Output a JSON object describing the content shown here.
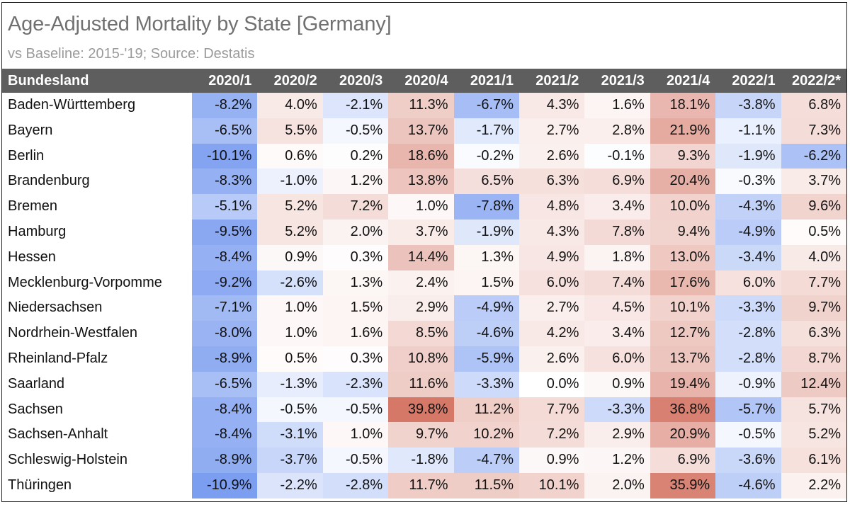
{
  "chart_data": {
    "type": "table",
    "title": "Age-Adjusted Mortality by State [Germany]",
    "subtitle": "vs Baseline: 2015-'19; Source: Destatis",
    "row_header": "Bundesland",
    "columns": [
      "2020/1",
      "2020/2",
      "2020/3",
      "2020/4",
      "2021/1",
      "2021/2",
      "2021/3",
      "2021/4",
      "2022/1",
      "2022/2*"
    ],
    "rows": [
      {
        "state": "Baden-Württemberg",
        "values": [
          -8.2,
          4.0,
          -2.1,
          11.3,
          -6.7,
          4.3,
          1.6,
          18.1,
          -3.8,
          6.8
        ]
      },
      {
        "state": "Bayern",
        "values": [
          -6.5,
          5.5,
          -0.5,
          13.7,
          -1.7,
          2.7,
          2.8,
          21.9,
          -1.1,
          7.3
        ]
      },
      {
        "state": "Berlin",
        "values": [
          -10.1,
          0.6,
          0.2,
          18.6,
          -0.2,
          2.6,
          -0.1,
          9.3,
          -1.9,
          -6.2
        ]
      },
      {
        "state": "Brandenburg",
        "values": [
          -8.3,
          -1.0,
          1.2,
          13.8,
          6.5,
          6.3,
          6.9,
          20.4,
          -0.3,
          3.7
        ]
      },
      {
        "state": "Bremen",
        "values": [
          -5.1,
          5.2,
          7.2,
          1.0,
          -7.8,
          4.8,
          3.4,
          10.0,
          -4.3,
          9.6
        ]
      },
      {
        "state": "Hamburg",
        "values": [
          -9.5,
          5.2,
          2.0,
          3.7,
          -1.9,
          4.3,
          7.8,
          9.4,
          -4.9,
          0.5
        ]
      },
      {
        "state": "Hessen",
        "values": [
          -8.4,
          0.9,
          0.3,
          14.4,
          1.3,
          4.9,
          1.8,
          13.0,
          -3.4,
          4.0
        ]
      },
      {
        "state": "Mecklenburg-Vorpomme",
        "values": [
          -9.2,
          -2.6,
          1.3,
          2.4,
          1.5,
          6.0,
          7.4,
          17.6,
          6.0,
          7.7
        ]
      },
      {
        "state": "Niedersachsen",
        "values": [
          -7.1,
          1.0,
          1.5,
          2.9,
          -4.9,
          2.7,
          4.5,
          10.1,
          -3.3,
          9.7
        ]
      },
      {
        "state": "Nordrhein-Westfalen",
        "values": [
          -8.0,
          1.0,
          1.6,
          8.5,
          -4.6,
          4.2,
          3.4,
          12.7,
          -2.8,
          6.3
        ]
      },
      {
        "state": "Rheinland-Pfalz",
        "values": [
          -8.9,
          0.5,
          0.3,
          10.8,
          -5.9,
          2.6,
          6.0,
          13.7,
          -2.8,
          8.7
        ]
      },
      {
        "state": "Saarland",
        "values": [
          -6.5,
          -1.3,
          -2.3,
          11.6,
          -3.3,
          0.0,
          0.9,
          19.4,
          -0.9,
          12.4
        ]
      },
      {
        "state": "Sachsen",
        "values": [
          -8.4,
          -0.5,
          -0.5,
          39.8,
          11.2,
          7.7,
          -3.3,
          36.8,
          -5.7,
          5.7
        ]
      },
      {
        "state": "Sachsen-Anhalt",
        "values": [
          -8.4,
          -3.1,
          1.0,
          9.7,
          10.2,
          7.2,
          2.9,
          20.9,
          -0.5,
          5.2
        ]
      },
      {
        "state": "Schleswig-Holstein",
        "values": [
          -8.9,
          -3.7,
          -0.5,
          -1.8,
          -4.7,
          0.9,
          1.2,
          6.9,
          -3.6,
          6.1
        ]
      },
      {
        "state": "Thüringen",
        "values": [
          -10.9,
          -2.2,
          -2.8,
          11.7,
          11.5,
          10.1,
          2.0,
          35.9,
          -4.6,
          2.2
        ]
      }
    ],
    "value_format": "percent_1dp",
    "colors": {
      "header_bg": "#5e5e5e",
      "header_text": "#ffffff",
      "negative_max": "#7c9ef0",
      "positive_max": "#d57868",
      "neutral": "#ffffff"
    }
  }
}
